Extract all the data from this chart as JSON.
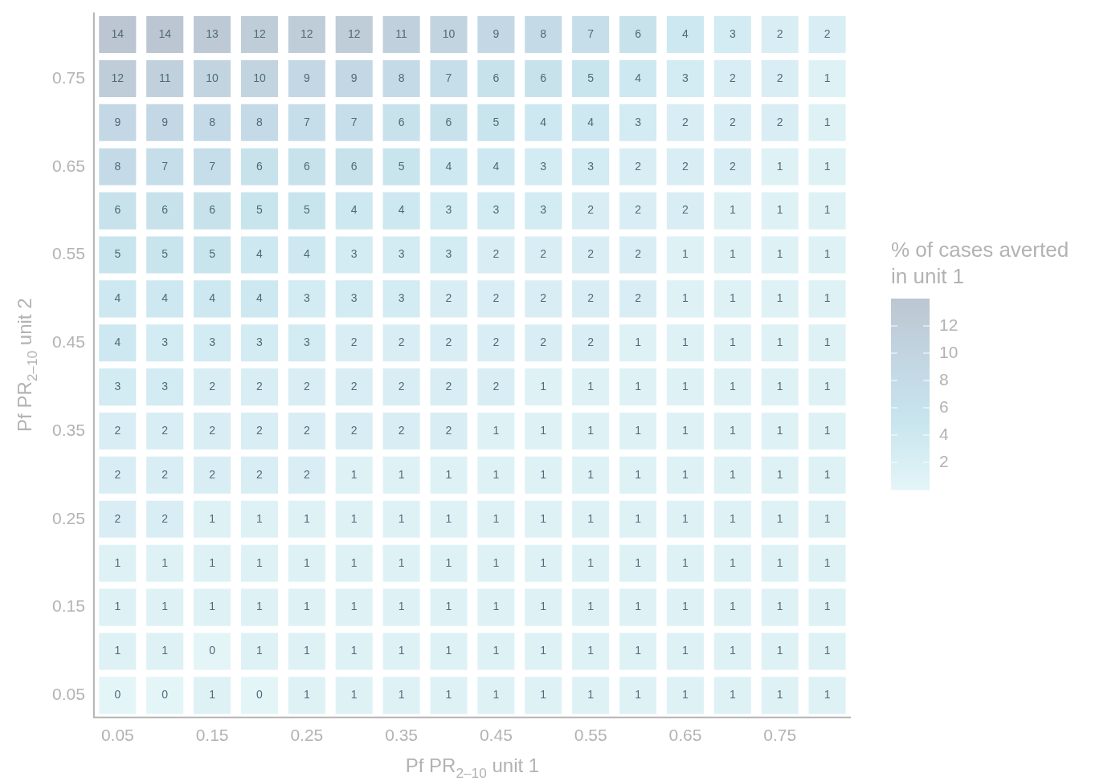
{
  "chart_data": {
    "type": "heatmap",
    "xlabel": "Pf PR$_{2–10}$ unit 1",
    "ylabel": "Pf PR$_{2–10}$ unit 2",
    "clabel": "% of cases averted\nin unit 1",
    "categories": [
      "0.05",
      null,
      "0.15",
      null,
      "0.25",
      null,
      "0.35",
      null,
      "0.45",
      null,
      "0.55",
      null,
      "0.65",
      null,
      "0.75",
      null
    ],
    "y_categories": [
      null,
      "0.75",
      null,
      "0.65",
      null,
      "0.55",
      null,
      "0.45",
      null,
      "0.35",
      null,
      "0.25",
      null,
      "0.15",
      null,
      "0.05"
    ],
    "cells": [
      [
        14,
        14,
        13,
        12,
        12,
        12,
        11,
        10,
        9,
        8,
        7,
        6,
        4,
        3,
        2,
        2
      ],
      [
        12,
        11,
        10,
        10,
        9,
        9,
        8,
        7,
        6,
        6,
        5,
        4,
        3,
        2,
        2,
        1
      ],
      [
        9,
        9,
        8,
        8,
        7,
        7,
        6,
        6,
        5,
        4,
        4,
        3,
        2,
        2,
        2,
        1
      ],
      [
        8,
        7,
        7,
        6,
        6,
        6,
        5,
        4,
        4,
        3,
        3,
        2,
        2,
        2,
        1,
        1
      ],
      [
        6,
        6,
        6,
        5,
        5,
        4,
        4,
        3,
        3,
        3,
        2,
        2,
        2,
        1,
        1,
        1
      ],
      [
        5,
        5,
        5,
        4,
        4,
        3,
        3,
        3,
        2,
        2,
        2,
        2,
        1,
        1,
        1,
        1
      ],
      [
        4,
        4,
        4,
        4,
        3,
        3,
        3,
        2,
        2,
        2,
        2,
        2,
        1,
        1,
        1,
        1
      ],
      [
        4,
        3,
        3,
        3,
        3,
        2,
        2,
        2,
        2,
        2,
        2,
        1,
        1,
        1,
        1,
        1
      ],
      [
        3,
        3,
        2,
        2,
        2,
        2,
        2,
        2,
        2,
        1,
        1,
        1,
        1,
        1,
        1,
        1
      ],
      [
        2,
        2,
        2,
        2,
        2,
        2,
        2,
        2,
        1,
        1,
        1,
        1,
        1,
        1,
        1,
        1
      ],
      [
        2,
        2,
        2,
        2,
        2,
        1,
        1,
        1,
        1,
        1,
        1,
        1,
        1,
        1,
        1,
        1
      ],
      [
        2,
        2,
        1,
        1,
        1,
        1,
        1,
        1,
        1,
        1,
        1,
        1,
        1,
        1,
        1,
        1
      ],
      [
        1,
        1,
        1,
        1,
        1,
        1,
        1,
        1,
        1,
        1,
        1,
        1,
        1,
        1,
        1,
        1
      ],
      [
        1,
        1,
        1,
        1,
        1,
        1,
        1,
        1,
        1,
        1,
        1,
        1,
        1,
        1,
        1,
        1
      ],
      [
        1,
        1,
        0,
        1,
        1,
        1,
        1,
        1,
        1,
        1,
        1,
        1,
        1,
        1,
        1,
        1
      ],
      [
        0,
        0,
        1,
        0,
        1,
        1,
        1,
        1,
        1,
        1,
        1,
        1,
        1,
        1,
        1,
        1
      ]
    ],
    "clim": [
      0,
      14
    ],
    "cticks": [
      2,
      4,
      6,
      8,
      10,
      12
    ],
    "data_labels": true
  }
}
